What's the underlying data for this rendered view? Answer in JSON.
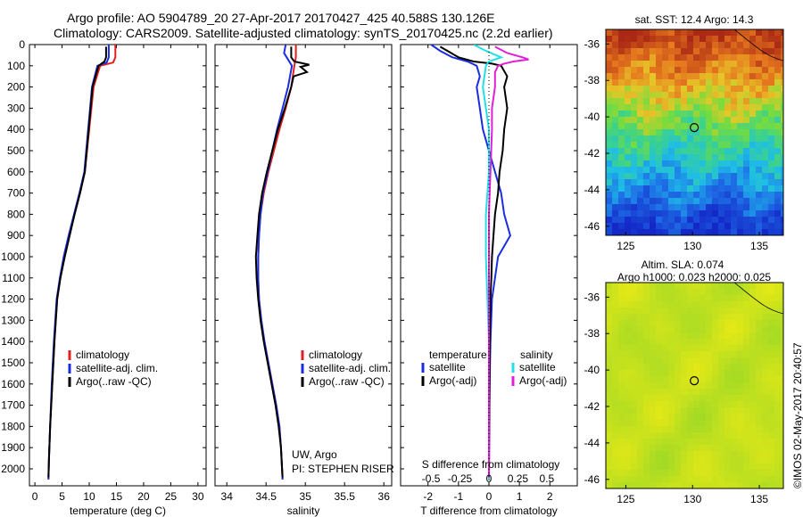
{
  "header": {
    "line1": "Argo profile: AO 5904789_20 27-Apr-2017 20170427_425 40.588S 130.126E",
    "line2": "Climatology: CARS2009. Satellite-adjusted climatology: synTS_20170425.nc (2.2d earlier)"
  },
  "colors": {
    "climatology": "#e02020",
    "satellite": "#1a2ee0",
    "argo": "#000000",
    "sat_salinity": "#22e0e8",
    "argo_salinity_adj": "#e020d8"
  },
  "chart_data": [
    {
      "type": "line",
      "name": "temperature-profile",
      "xlabel": "temperature (deg C)",
      "ylabel": "",
      "xlim": [
        -1,
        31.5
      ],
      "ylim": [
        2080,
        0
      ],
      "x_ticks": [
        0,
        5,
        10,
        15,
        20,
        25,
        30
      ],
      "y_ticks": [
        0,
        100,
        200,
        300,
        400,
        500,
        600,
        700,
        800,
        900,
        1000,
        1100,
        1200,
        1300,
        1400,
        1500,
        1600,
        1700,
        1800,
        1900,
        2000
      ],
      "legend": [
        "climatology",
        "satellite-adj. clim.",
        "Argo(..raw -QC)"
      ],
      "series": [
        {
          "name": "climatology",
          "color_key": "climatology",
          "points": [
            [
              14.8,
              0
            ],
            [
              14.8,
              60
            ],
            [
              14.4,
              85
            ],
            [
              12,
              100
            ],
            [
              10.8,
              200
            ],
            [
              10,
              400
            ],
            [
              9.2,
              600
            ],
            [
              8.3,
              700
            ],
            [
              7.3,
              800
            ],
            [
              6.3,
              900
            ],
            [
              5.4,
              1000
            ],
            [
              4.7,
              1100
            ],
            [
              4.1,
              1200
            ],
            [
              3.6,
              1400
            ],
            [
              3.2,
              1600
            ],
            [
              2.8,
              1800
            ],
            [
              2.6,
              1950
            ],
            [
              2.5,
              2050
            ]
          ]
        },
        {
          "name": "satellite-adj. clim.",
          "color_key": "satellite",
          "points": [
            [
              13.6,
              0
            ],
            [
              13.6,
              60
            ],
            [
              13.2,
              85
            ],
            [
              11.5,
              100
            ],
            [
              10.5,
              200
            ],
            [
              9.8,
              400
            ],
            [
              9.1,
              600
            ],
            [
              8.2,
              700
            ],
            [
              7.2,
              800
            ],
            [
              6.2,
              900
            ],
            [
              5.3,
              1000
            ],
            [
              4.6,
              1100
            ],
            [
              4.0,
              1200
            ],
            [
              3.5,
              1400
            ],
            [
              3.1,
              1600
            ],
            [
              2.8,
              1800
            ],
            [
              2.6,
              1950
            ],
            [
              2.5,
              2050
            ]
          ]
        },
        {
          "name": "Argo(..raw -QC)",
          "color_key": "argo",
          "points": [
            [
              13.1,
              10
            ],
            [
              13.1,
              60
            ],
            [
              12.8,
              80
            ],
            [
              11.7,
              100
            ],
            [
              10.6,
              200
            ],
            [
              9.9,
              400
            ],
            [
              9.2,
              600
            ],
            [
              8.3,
              700
            ],
            [
              7.3,
              800
            ],
            [
              6.4,
              900
            ],
            [
              5.5,
              1000
            ],
            [
              4.7,
              1100
            ],
            [
              4.1,
              1200
            ],
            [
              3.6,
              1400
            ],
            [
              3.2,
              1600
            ],
            [
              2.8,
              1800
            ],
            [
              2.6,
              1950
            ],
            [
              2.5,
              2040
            ]
          ]
        }
      ]
    },
    {
      "type": "line",
      "name": "salinity-profile",
      "xlabel": "salinity",
      "xlim": [
        33.85,
        36.1
      ],
      "ylim": [
        2080,
        0
      ],
      "x_ticks": [
        34,
        34.5,
        35,
        35.5,
        36
      ],
      "legend": [
        "climatology",
        "satellite-adj. clim.",
        "Argo(..raw -QC)"
      ],
      "credit1": "UW, Argo",
      "credit2": "PI: STEPHEN RISER",
      "series": [
        {
          "name": "climatology",
          "color_key": "climatology",
          "points": [
            [
              34.88,
              0
            ],
            [
              34.88,
              60
            ],
            [
              34.86,
              100
            ],
            [
              34.82,
              200
            ],
            [
              34.75,
              300
            ],
            [
              34.67,
              400
            ],
            [
              34.6,
              500
            ],
            [
              34.53,
              600
            ],
            [
              34.47,
              700
            ],
            [
              34.43,
              800
            ],
            [
              34.41,
              900
            ],
            [
              34.4,
              1000
            ],
            [
              34.4,
              1100
            ],
            [
              34.41,
              1200
            ],
            [
              34.44,
              1300
            ],
            [
              34.48,
              1400
            ],
            [
              34.53,
              1500
            ],
            [
              34.58,
              1600
            ],
            [
              34.63,
              1700
            ],
            [
              34.67,
              1800
            ],
            [
              34.69,
              1900
            ],
            [
              34.71,
              2050
            ]
          ]
        },
        {
          "name": "satellite-adj. clim.",
          "color_key": "satellite",
          "points": [
            [
              34.75,
              0
            ],
            [
              34.73,
              40
            ],
            [
              34.78,
              70
            ],
            [
              34.83,
              100
            ],
            [
              34.78,
              200
            ],
            [
              34.71,
              300
            ],
            [
              34.64,
              400
            ],
            [
              34.58,
              500
            ],
            [
              34.52,
              600
            ],
            [
              34.46,
              700
            ],
            [
              34.43,
              800
            ],
            [
              34.41,
              900
            ],
            [
              34.4,
              1000
            ],
            [
              34.4,
              1100
            ],
            [
              34.41,
              1200
            ],
            [
              34.44,
              1300
            ],
            [
              34.48,
              1400
            ],
            [
              34.53,
              1500
            ],
            [
              34.58,
              1600
            ],
            [
              34.63,
              1700
            ],
            [
              34.67,
              1800
            ],
            [
              34.69,
              1900
            ],
            [
              34.71,
              2050
            ]
          ]
        },
        {
          "name": "Argo(..raw -QC)",
          "color_key": "argo",
          "points": [
            [
              34.82,
              10
            ],
            [
              34.82,
              60
            ],
            [
              34.86,
              80
            ],
            [
              35.05,
              95
            ],
            [
              34.94,
              105
            ],
            [
              35.02,
              130
            ],
            [
              34.85,
              150
            ],
            [
              34.82,
              200
            ],
            [
              34.74,
              300
            ],
            [
              34.65,
              400
            ],
            [
              34.58,
              500
            ],
            [
              34.51,
              600
            ],
            [
              34.45,
              700
            ],
            [
              34.41,
              800
            ],
            [
              34.39,
              900
            ],
            [
              34.37,
              1000
            ],
            [
              34.38,
              1100
            ],
            [
              34.4,
              1200
            ],
            [
              34.43,
              1300
            ],
            [
              34.47,
              1400
            ],
            [
              34.52,
              1500
            ],
            [
              34.57,
              1600
            ],
            [
              34.62,
              1700
            ],
            [
              34.66,
              1800
            ],
            [
              34.69,
              1900
            ],
            [
              34.71,
              2040
            ]
          ]
        }
      ]
    },
    {
      "type": "line",
      "name": "difference-profile",
      "xlabel": "T difference from climatology",
      "x2label": "S difference from climatology",
      "xlim": [
        -2.9,
        2.9
      ],
      "ylim": [
        2080,
        0
      ],
      "x_ticks": [
        -2,
        -1,
        0,
        1,
        2
      ],
      "x_tick_labels": [
        "-2",
        "-1",
        "0",
        "1",
        "2"
      ],
      "s_ticks": [
        -1.9,
        -0.95,
        0,
        0.95,
        1.9
      ],
      "s_tick_labels": [
        "-0.5",
        "-0.25",
        "0",
        "0.25",
        "0.5"
      ],
      "legend_temperature_title": "temperature",
      "legend_salinity_title": "salinity",
      "legend_temperature": [
        "satellite",
        "Argo(-adj)"
      ],
      "legend_salinity": [
        "satellite",
        "Argo(-adj)"
      ],
      "series": [
        {
          "name": "temperature satellite",
          "color_key": "satellite",
          "points": [
            [
              -1.9,
              0
            ],
            [
              -1.6,
              30
            ],
            [
              -1.2,
              60
            ],
            [
              -0.7,
              80
            ],
            [
              -0.4,
              100
            ],
            [
              -0.3,
              150
            ],
            [
              -0.4,
              200
            ],
            [
              -0.3,
              300
            ],
            [
              -0.2,
              400
            ],
            [
              0.0,
              500
            ],
            [
              0.2,
              600
            ],
            [
              0.4,
              700
            ],
            [
              0.5,
              800
            ],
            [
              0.6,
              850
            ],
            [
              0.7,
              900
            ],
            [
              0.5,
              950
            ],
            [
              0.3,
              1000
            ],
            [
              0.2,
              1100
            ],
            [
              0.1,
              1200
            ],
            [
              0.05,
              1400
            ],
            [
              0.02,
              1600
            ],
            [
              0.01,
              1800
            ],
            [
              0.0,
              2050
            ]
          ]
        },
        {
          "name": "temperature Argo(-adj)",
          "color_key": "argo",
          "points": [
            [
              -1.6,
              10
            ],
            [
              -1.0,
              60
            ],
            [
              -0.5,
              80
            ],
            [
              0.1,
              90
            ],
            [
              0.4,
              100
            ],
            [
              0.6,
              150
            ],
            [
              0.5,
              200
            ],
            [
              0.6,
              300
            ],
            [
              0.5,
              400
            ],
            [
              0.45,
              500
            ],
            [
              0.35,
              600
            ],
            [
              0.3,
              700
            ],
            [
              0.2,
              800
            ],
            [
              0.15,
              900
            ],
            [
              0.1,
              1000
            ],
            [
              0.08,
              1100
            ],
            [
              0.05,
              1200
            ],
            [
              0.03,
              1400
            ],
            [
              0.02,
              1600
            ],
            [
              0.01,
              1800
            ],
            [
              0.0,
              2040
            ]
          ]
        },
        {
          "name": "salinity satellite",
          "color_key": "sat_salinity",
          "points": [
            [
              -0.5,
              0
            ],
            [
              -0.1,
              30
            ],
            [
              0.4,
              60
            ],
            [
              0.0,
              80
            ],
            [
              -0.1,
              100
            ],
            [
              -0.2,
              200
            ],
            [
              -0.1,
              300
            ],
            [
              0.0,
              400
            ],
            [
              0.0,
              600
            ],
            [
              -0.1,
              800
            ],
            [
              -0.1,
              1000
            ],
            [
              -0.05,
              1200
            ],
            [
              0.0,
              1400
            ],
            [
              0.0,
              1600
            ],
            [
              0.0,
              1800
            ],
            [
              0.0,
              2050
            ]
          ]
        },
        {
          "name": "salinity Argo(-adj)",
          "color_key": "argo_salinity_adj",
          "points": [
            [
              0.2,
              10
            ],
            [
              0.6,
              40
            ],
            [
              1.1,
              60
            ],
            [
              1.3,
              70
            ],
            [
              0.8,
              80
            ],
            [
              0.5,
              90
            ],
            [
              0.3,
              100
            ],
            [
              0.2,
              130
            ],
            [
              0.2,
              200
            ],
            [
              0.1,
              300
            ],
            [
              0.1,
              400
            ],
            [
              0.05,
              600
            ],
            [
              0.0,
              800
            ],
            [
              0.0,
              1200
            ],
            [
              0.0,
              2040
            ]
          ]
        }
      ]
    },
    {
      "type": "heatmap",
      "name": "sst-map",
      "title": "sat. SST: 12.4 Argo: 14.3",
      "xlim": [
        123.5,
        136.8
      ],
      "ylim": [
        -46.5,
        -35.2
      ],
      "x_ticks": [
        125,
        130,
        135
      ],
      "y_ticks": [
        -36,
        -38,
        -40,
        -42,
        -44,
        -46
      ],
      "y_tick_labels": [
        "-36",
        "-38",
        "-40",
        "-42",
        "-44",
        "-46"
      ],
      "marker": {
        "lon": 130.126,
        "lat": -40.588
      }
    },
    {
      "type": "heatmap",
      "name": "sla-map",
      "title1": "Altim. SLA: 0.074",
      "title2": "Argo h1000: 0.023 h2000: 0.025",
      "xlim": [
        123.5,
        136.8
      ],
      "ylim": [
        -46.5,
        -35.2
      ],
      "x_ticks": [
        125,
        130,
        135
      ],
      "y_ticks": [
        -36,
        -38,
        -40,
        -42,
        -44,
        -46
      ],
      "y_tick_labels": [
        "-36",
        "-38",
        "-40",
        "-42",
        "-44",
        "-46"
      ],
      "marker": {
        "lon": 130.126,
        "lat": -40.588
      }
    }
  ],
  "footer": {
    "timestamp": "©IMOS 02-May-2017 20:40:57"
  }
}
